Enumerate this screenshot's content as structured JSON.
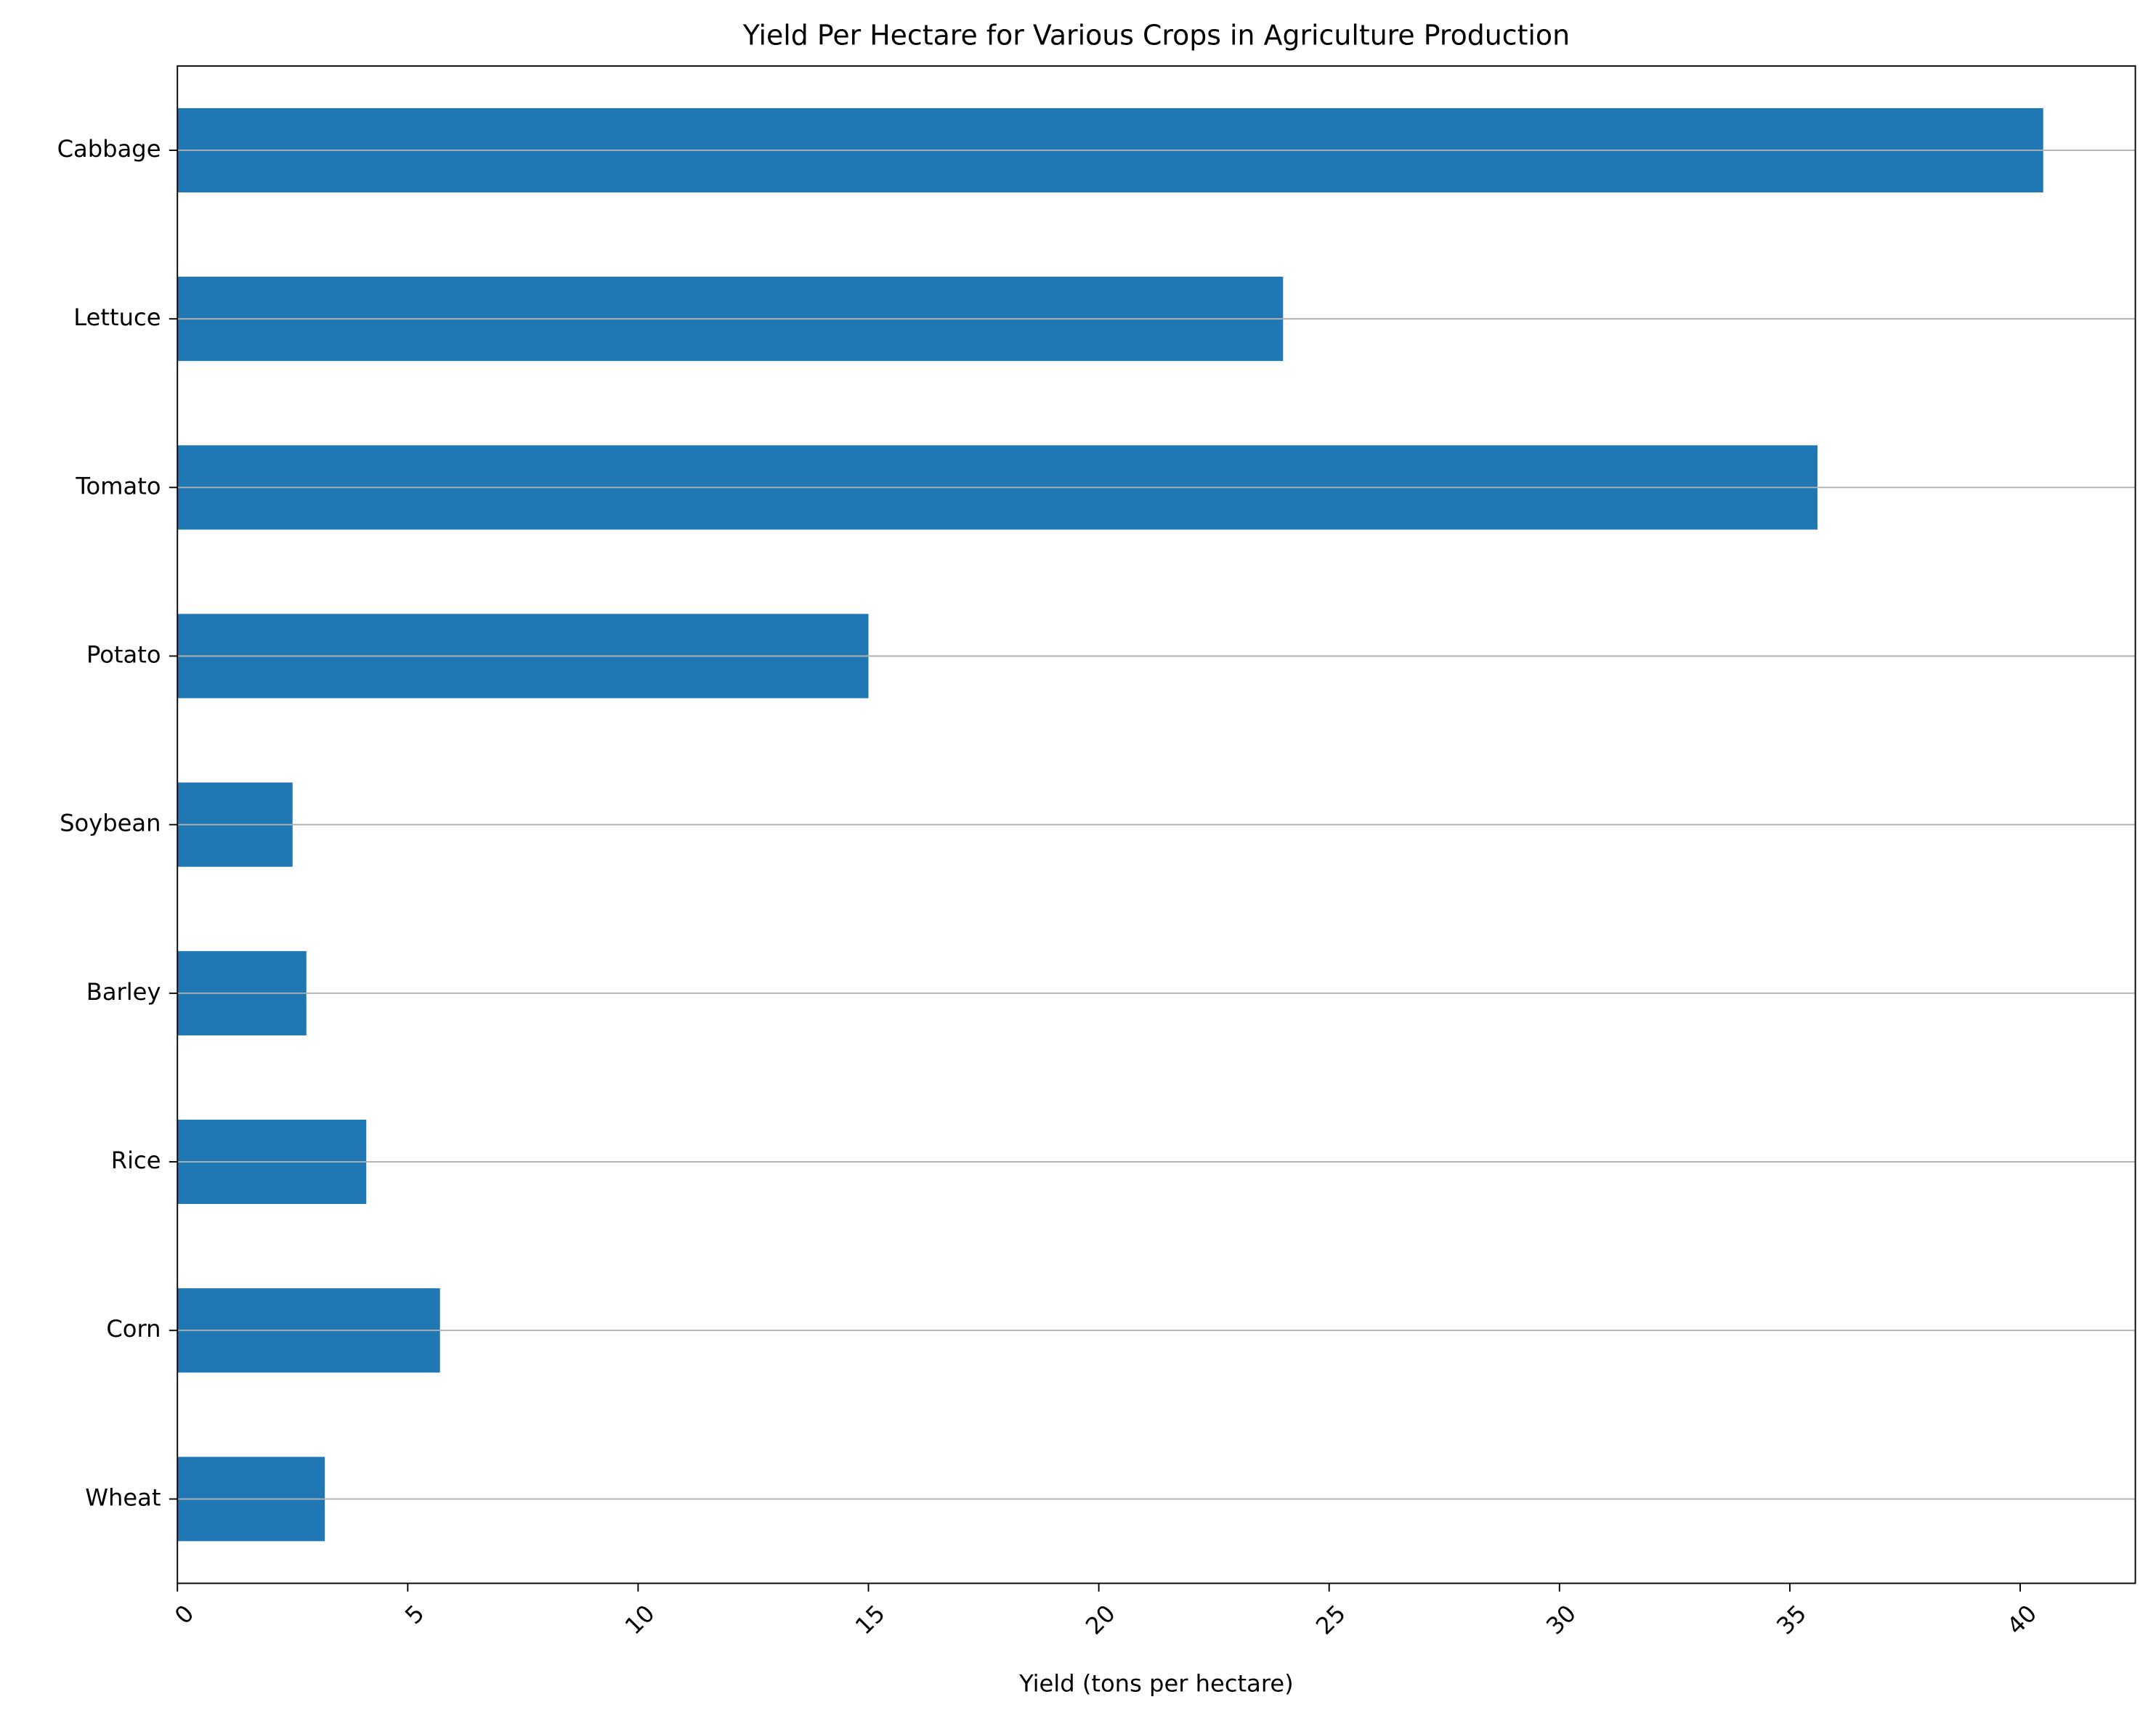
{
  "chart_data": {
    "type": "barh",
    "title": "Yield Per Hectare for Various Crops in Agriculture Production",
    "x_label": "Yield (tons per hectare)",
    "categories": [
      "Wheat",
      "Corn",
      "Rice",
      "Barley",
      "Soybean",
      "Potato",
      "Tomato",
      "Lettuce",
      "Cabbage"
    ],
    "values": [
      3.2,
      5.7,
      4.1,
      2.8,
      2.5,
      15,
      35.6,
      24,
      40.5
    ],
    "color": "#1f77b4",
    "xlim": [
      0,
      42.5
    ],
    "xticks": [
      0,
      5,
      10,
      15,
      20,
      25,
      30,
      35,
      40
    ],
    "grid": true
  }
}
